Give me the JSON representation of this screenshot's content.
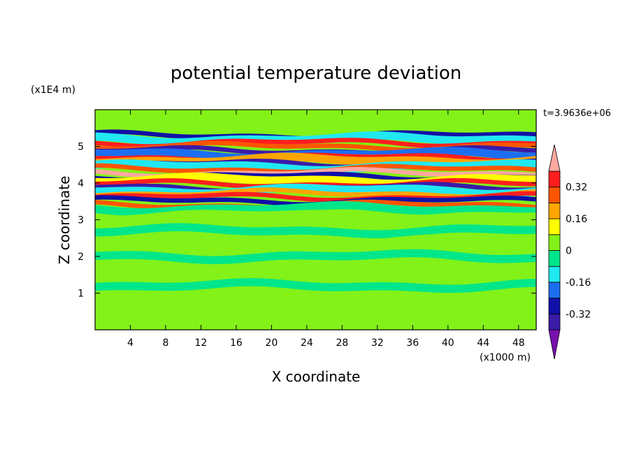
{
  "chart_data": {
    "type": "heatmap",
    "title": "potential temperature deviation",
    "xlabel": "X coordinate",
    "ylabel": "Z coordinate",
    "x_unit": "(x1000 m)",
    "y_unit": "(x1E4 m)",
    "time_label": "t=3.9636e+06",
    "xlim": [
      0,
      50
    ],
    "ylim": [
      0,
      6
    ],
    "x_ticks": [
      4,
      8,
      12,
      16,
      20,
      24,
      28,
      32,
      36,
      40,
      44,
      48
    ],
    "y_ticks": [
      1,
      2,
      3,
      4,
      5
    ],
    "colorbar": {
      "levels": [
        -0.4,
        -0.32,
        -0.24,
        -0.16,
        -0.08,
        0,
        0.08,
        0.16,
        0.24,
        0.32,
        0.4
      ],
      "tick_labels": [
        "0.32",
        "0.16",
        "0",
        "-0.16",
        "-0.32"
      ],
      "tick_values": [
        0.32,
        0.16,
        0,
        -0.16,
        -0.32
      ],
      "colors_low_to_high": [
        "#7a10b0",
        "#3b1aa8",
        "#1010a8",
        "#1c6ef0",
        "#20e8f0",
        "#00e68a",
        "#82f218",
        "#ffff00",
        "#ffa500",
        "#ff5500",
        "#ff1e1e",
        "#ffa8a0"
      ],
      "under_color": "#7a10b0",
      "over_color": "#ffa8a0"
    },
    "background_color": "#82f218",
    "bands": [
      {
        "z": 5.75,
        "value": 0.04
      },
      {
        "z": 5.3,
        "value": -0.28
      },
      {
        "z": 5.2,
        "value": -0.1
      },
      {
        "z": 5.1,
        "value": 0.36
      },
      {
        "z": 5.0,
        "value": 0.3
      },
      {
        "z": 4.88,
        "value": -0.34
      },
      {
        "z": 4.78,
        "value": -0.2
      },
      {
        "z": 4.7,
        "value": 0.38
      },
      {
        "z": 4.62,
        "value": 0.2
      },
      {
        "z": 4.52,
        "value": -0.34
      },
      {
        "z": 4.45,
        "value": -0.12
      },
      {
        "z": 4.38,
        "value": 0.28
      },
      {
        "z": 4.28,
        "value": 0.42
      },
      {
        "z": 4.18,
        "value": -0.3
      },
      {
        "z": 4.08,
        "value": 0.12
      },
      {
        "z": 3.98,
        "value": 0.36
      },
      {
        "z": 3.88,
        "value": -0.34
      },
      {
        "z": 3.8,
        "value": -0.12
      },
      {
        "z": 3.72,
        "value": 0.22
      },
      {
        "z": 3.62,
        "value": 0.38
      },
      {
        "z": 3.52,
        "value": -0.26
      },
      {
        "z": 3.4,
        "value": 0.3
      },
      {
        "z": 3.3,
        "value": -0.06
      },
      {
        "z": 3.1,
        "value": 0.03
      },
      {
        "z": 2.7,
        "value": -0.02
      },
      {
        "z": 2.4,
        "value": 0.03
      },
      {
        "z": 2.0,
        "value": -0.02
      },
      {
        "z": 1.6,
        "value": 0.04
      },
      {
        "z": 1.2,
        "value": -0.02
      },
      {
        "z": 0.6,
        "value": 0.04
      }
    ]
  }
}
